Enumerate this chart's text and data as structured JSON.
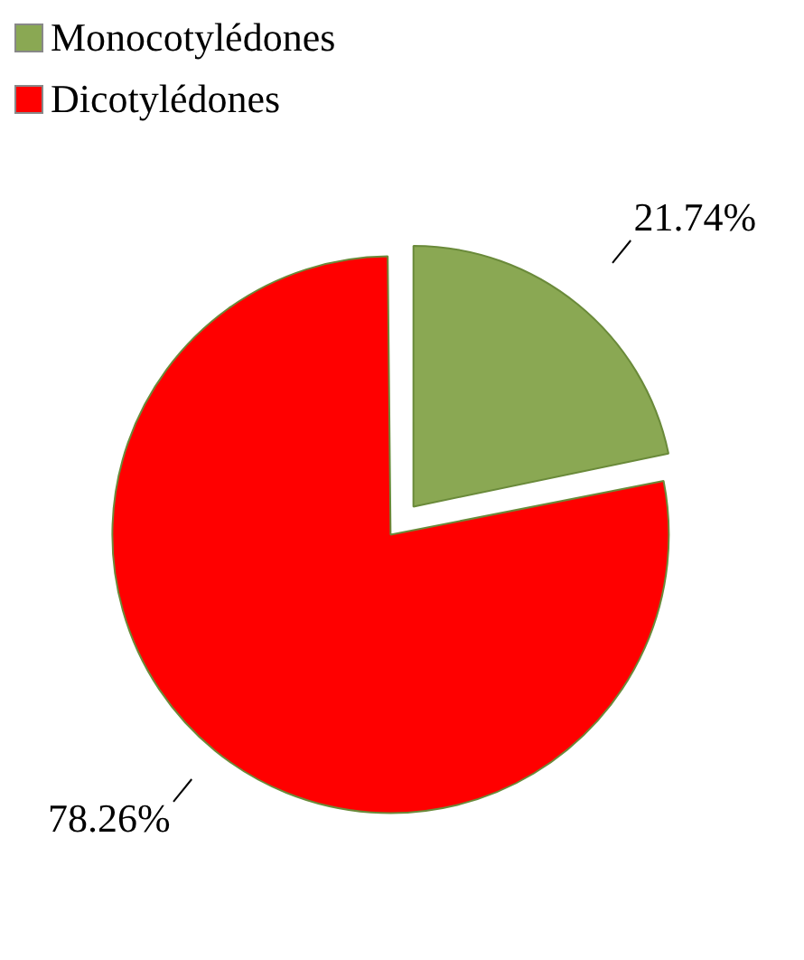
{
  "chart_data": {
    "type": "pie",
    "categories": [
      "Monocotylédones",
      "Dicotylédones"
    ],
    "values": [
      21.74,
      78.26
    ],
    "colors": [
      "#8aa853",
      "#ff0000"
    ],
    "value_labels": [
      "21.74%",
      "78.26%"
    ],
    "legend": "top left"
  }
}
